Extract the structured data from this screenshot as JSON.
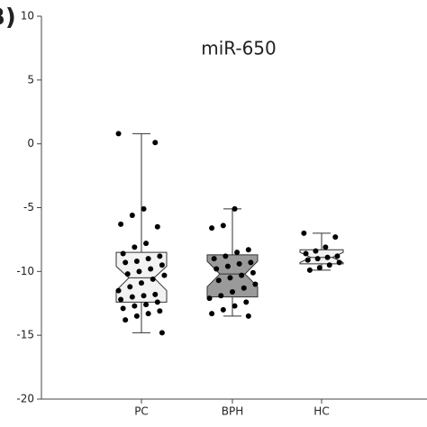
{
  "chart_data": {
    "type": "box",
    "panel_label": "B)",
    "title": "miR-650",
    "categories": [
      "PC",
      "BPH",
      "HC"
    ],
    "ylim": [
      -20,
      10
    ],
    "yticks": [
      -20,
      -15,
      -10,
      -5,
      0,
      5,
      10
    ],
    "boxes": [
      {
        "min": -14.8,
        "q1": -12.4,
        "median": -10.5,
        "q3": -8.5,
        "max": 0.8,
        "notch": [
          -11.5,
          -9.6
        ],
        "color": "#f2f2f2",
        "points": [
          0.8,
          0.1,
          -5.1,
          -5.6,
          -6.3,
          -6.5,
          -7.8,
          -8.1,
          -8.6,
          -8.8,
          -9.0,
          -9.2,
          -9.3,
          -9.5,
          -9.8,
          -10.0,
          -10.2,
          -10.3,
          -10.6,
          -10.9,
          -11.2,
          -11.5,
          -11.8,
          -11.9,
          -12.0,
          -12.2,
          -12.4,
          -12.6,
          -12.7,
          -12.9,
          -13.1,
          -13.3,
          -13.5,
          -13.8,
          -14.8
        ]
      },
      {
        "min": -13.5,
        "q1": -12.0,
        "median": -10.2,
        "q3": -8.7,
        "max": -5.1,
        "notch": [
          -11.2,
          -9.2
        ],
        "color": "#9a9a9a",
        "points": [
          -5.1,
          -6.4,
          -6.6,
          -8.3,
          -8.5,
          -8.8,
          -9.0,
          -9.3,
          -9.4,
          -9.6,
          -9.8,
          -10.1,
          -10.3,
          -10.5,
          -10.7,
          -11.0,
          -11.3,
          -11.6,
          -11.9,
          -12.1,
          -12.4,
          -12.7,
          -13.0,
          -13.3,
          -13.5
        ]
      },
      {
        "min": -9.9,
        "q1": -9.4,
        "median": -8.9,
        "q3": -8.3,
        "max": -7.0,
        "notch": [
          -9.3,
          -8.5
        ],
        "color": "#f2f2f2",
        "points": [
          -7.0,
          -7.3,
          -8.1,
          -8.4,
          -8.6,
          -8.8,
          -8.9,
          -9.0,
          -9.1,
          -9.3,
          -9.5,
          -9.7,
          -9.9
        ]
      }
    ]
  }
}
